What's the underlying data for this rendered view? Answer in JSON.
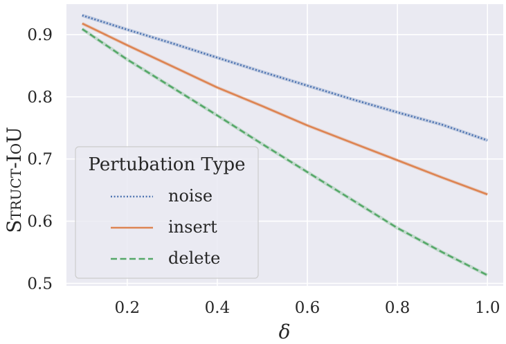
{
  "chart_data": {
    "type": "line",
    "title": "",
    "xlabel": "δ",
    "ylabel": "Struct-IoU",
    "xlim": [
      0.065,
      1.035
    ],
    "ylim": [
      0.496,
      0.949
    ],
    "xticks": [
      0.2,
      0.4,
      0.6,
      0.8,
      1.0
    ],
    "xtick_labels": [
      "0.2",
      "0.4",
      "0.6",
      "0.8",
      "1.0"
    ],
    "yticks": [
      0.5,
      0.6,
      0.7,
      0.8,
      0.9
    ],
    "ytick_labels": [
      "0.5",
      "0.6",
      "0.7",
      "0.8",
      "0.9"
    ],
    "grid": true,
    "background": "#eaeaf2",
    "legend": {
      "title": "Pertubation Type",
      "position": "lower left"
    },
    "x": [
      0.1,
      0.2,
      0.3,
      0.4,
      0.5,
      0.6,
      0.7,
      0.8,
      0.9,
      1.0
    ],
    "series": [
      {
        "name": "noise",
        "color": "#4c72b0",
        "linestyle": "dotted",
        "values": [
          0.931,
          0.908,
          0.886,
          0.863,
          0.84,
          0.818,
          0.796,
          0.775,
          0.755,
          0.73
        ]
      },
      {
        "name": "insert",
        "color": "#dd8452",
        "linestyle": "solid",
        "values": [
          0.918,
          0.883,
          0.849,
          0.815,
          0.785,
          0.754,
          0.726,
          0.698,
          0.67,
          0.643
        ]
      },
      {
        "name": "delete",
        "color": "#55a868",
        "linestyle": "dashed",
        "values": [
          0.909,
          0.86,
          0.815,
          0.77,
          0.724,
          0.679,
          0.634,
          0.589,
          0.55,
          0.513
        ]
      }
    ]
  }
}
